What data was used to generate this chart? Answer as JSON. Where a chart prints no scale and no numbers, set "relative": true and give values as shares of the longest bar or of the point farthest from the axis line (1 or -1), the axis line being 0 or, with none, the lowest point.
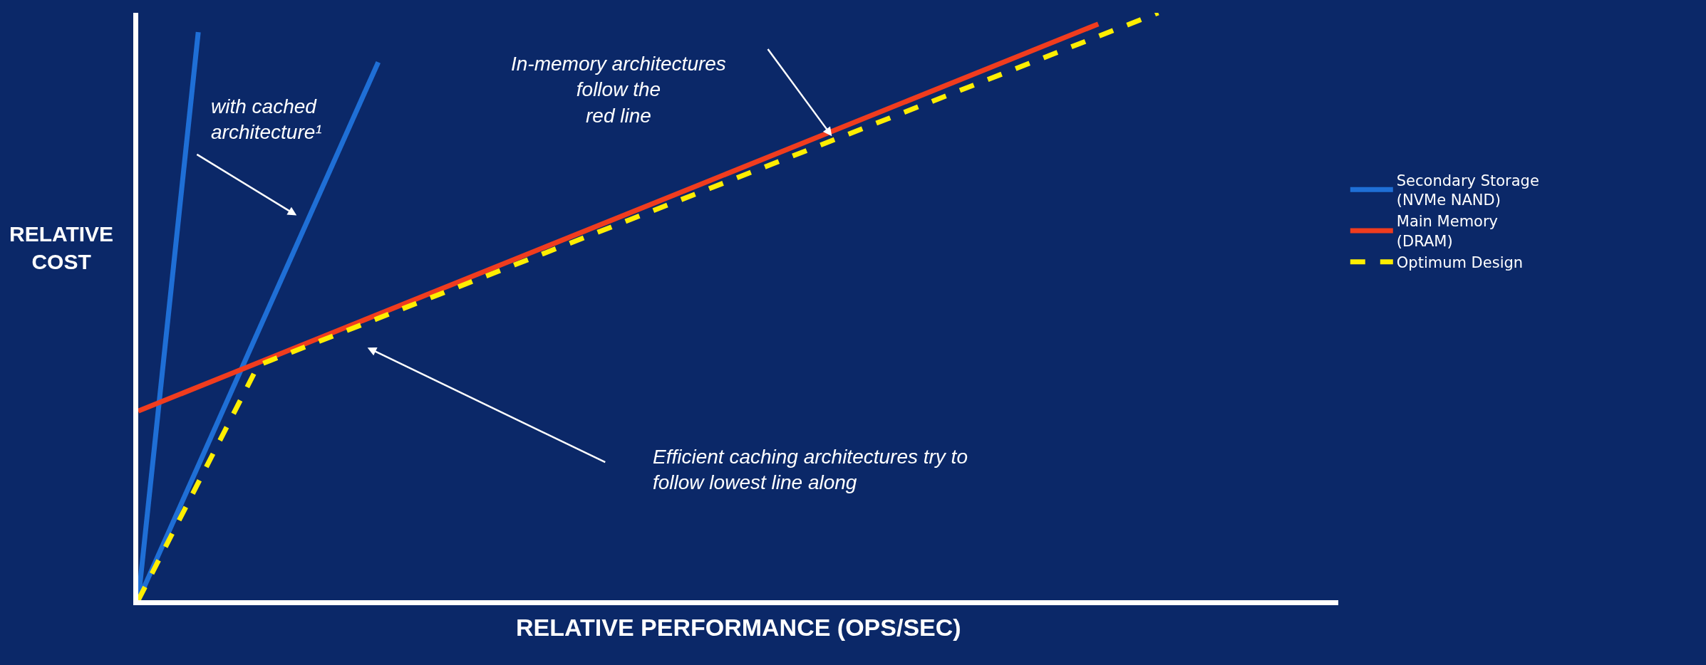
{
  "chart_data": {
    "type": "line",
    "relative": true,
    "xlabel": "RELATIVE PERFORMANCE (OPS/SEC)",
    "ylabel": "RELATIVE COST",
    "grid": false,
    "marker": "none",
    "legend": "right",
    "categories": [
      null,
      null,
      null,
      null,
      null,
      null,
      null,
      null,
      null,
      null,
      null,
      null,
      null,
      null,
      null,
      null,
      null,
      null,
      null,
      null,
      null
    ],
    "series": [
      {
        "name": "Secondary Storage (NVMe NAND)",
        "color": "#1f6fd6",
        "values": [
          0,
          0.967,
          null,
          null,
          null,
          null,
          null,
          null,
          null,
          null,
          null,
          null,
          null,
          null,
          null,
          null,
          null,
          null,
          null,
          null,
          null
        ]
      },
      {
        "color": "#1f6fd6",
        "values": [
          0,
          null,
          null,
          null,
          0.916,
          null,
          null,
          null,
          null,
          null,
          null,
          null,
          null,
          null,
          null,
          null,
          null,
          null,
          null,
          null,
          null
        ]
      },
      {
        "name": "Main Memory (DRAM)",
        "color": "#f03c1e",
        "values": [
          0.322,
          null,
          null,
          null,
          null,
          null,
          null,
          null,
          null,
          null,
          null,
          null,
          null,
          null,
          null,
          null,
          0.981,
          null,
          null,
          null,
          null
        ]
      },
      {
        "name": "Optimum Design",
        "color": "#ffee00",
        "line_style": "dashed",
        "values": [
          0,
          null,
          0.4,
          null,
          null,
          null,
          null,
          null,
          null,
          null,
          null,
          null,
          null,
          null,
          null,
          null,
          null,
          1.0,
          null,
          null,
          null
        ]
      }
    ],
    "annotations": [
      "with cached architecture¹",
      "In-memory architectures follow the red line",
      "Efficient caching architectures try to follow lowest line along"
    ]
  }
}
